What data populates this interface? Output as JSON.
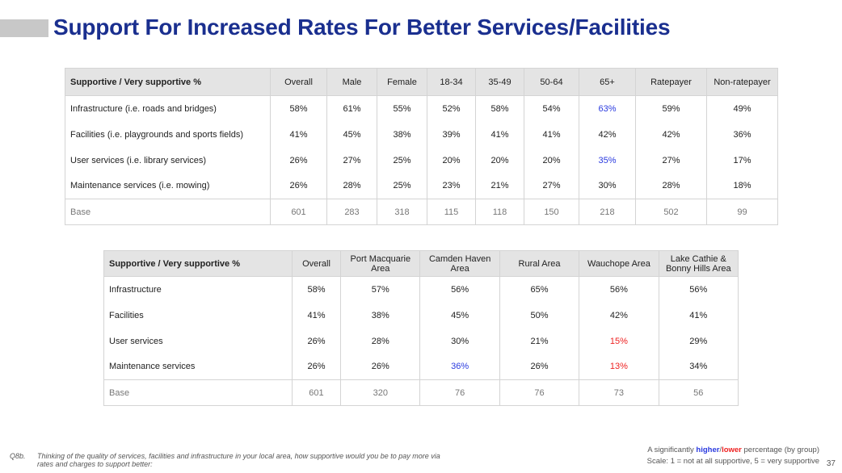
{
  "title": "Support For Increased Rates For Better Services/Facilities",
  "table1": {
    "header": [
      "Supportive / Very supportive %",
      "Overall",
      "Male",
      "Female",
      "18-34",
      "35-49",
      "50-64",
      "65+",
      "Ratepayer",
      "Non-ratepayer"
    ],
    "rows": [
      {
        "label": "Infrastructure (i.e. roads and bridges)",
        "values": [
          "58%",
          "61%",
          "55%",
          "52%",
          "58%",
          "54%",
          "63%",
          "59%",
          "49%"
        ]
      },
      {
        "label": "Facilities (i.e. playgrounds and sports fields)",
        "values": [
          "41%",
          "45%",
          "38%",
          "39%",
          "41%",
          "41%",
          "42%",
          "42%",
          "36%"
        ]
      },
      {
        "label": "User services (i.e. library services)",
        "values": [
          "26%",
          "27%",
          "25%",
          "20%",
          "20%",
          "20%",
          "35%",
          "27%",
          "17%"
        ]
      },
      {
        "label": "Maintenance services (i.e. mowing)",
        "values": [
          "26%",
          "28%",
          "25%",
          "23%",
          "21%",
          "27%",
          "30%",
          "28%",
          "18%"
        ]
      }
    ],
    "base": {
      "label": "Base",
      "values": [
        "601",
        "283",
        "318",
        "115",
        "118",
        "150",
        "218",
        "502",
        "99"
      ]
    }
  },
  "table2": {
    "header": [
      "Supportive / Very supportive %",
      "Overall",
      "Port Macquarie Area",
      "Camden Haven Area",
      "Rural Area",
      "Wauchope Area",
      "Lake Cathie & Bonny Hills Area"
    ],
    "rows": [
      {
        "label": "Infrastructure",
        "values": [
          "58%",
          "57%",
          "56%",
          "65%",
          "56%",
          "56%"
        ]
      },
      {
        "label": "Facilities",
        "values": [
          "41%",
          "38%",
          "45%",
          "50%",
          "42%",
          "41%"
        ]
      },
      {
        "label": "User services",
        "values": [
          "26%",
          "28%",
          "30%",
          "21%",
          "15%",
          "29%"
        ]
      },
      {
        "label": "Maintenance services",
        "values": [
          "26%",
          "26%",
          "36%",
          "26%",
          "13%",
          "34%"
        ]
      }
    ],
    "base": {
      "label": "Base",
      "values": [
        "601",
        "320",
        "76",
        "76",
        "73",
        "56"
      ]
    }
  },
  "footer": {
    "question_label": "Q8b.",
    "question_text": "Thinking of the quality of services, facilities and infrastructure in your local area, how supportive would you be to pay more via rates and charges to support better:",
    "legend_prefix": "A significantly ",
    "legend_higher": "higher",
    "legend_sep": "/",
    "legend_lower": "lower",
    "legend_suffix": " percentage (by group)",
    "scale": "Scale: 1 = not at all supportive, 5 = very supportive",
    "page_number": "37"
  },
  "colors": {
    "title": "#1a2f8f",
    "significantly_higher": "#2a3adf",
    "significantly_lower": "#ee2222",
    "header_background": "#e4e4e4"
  }
}
